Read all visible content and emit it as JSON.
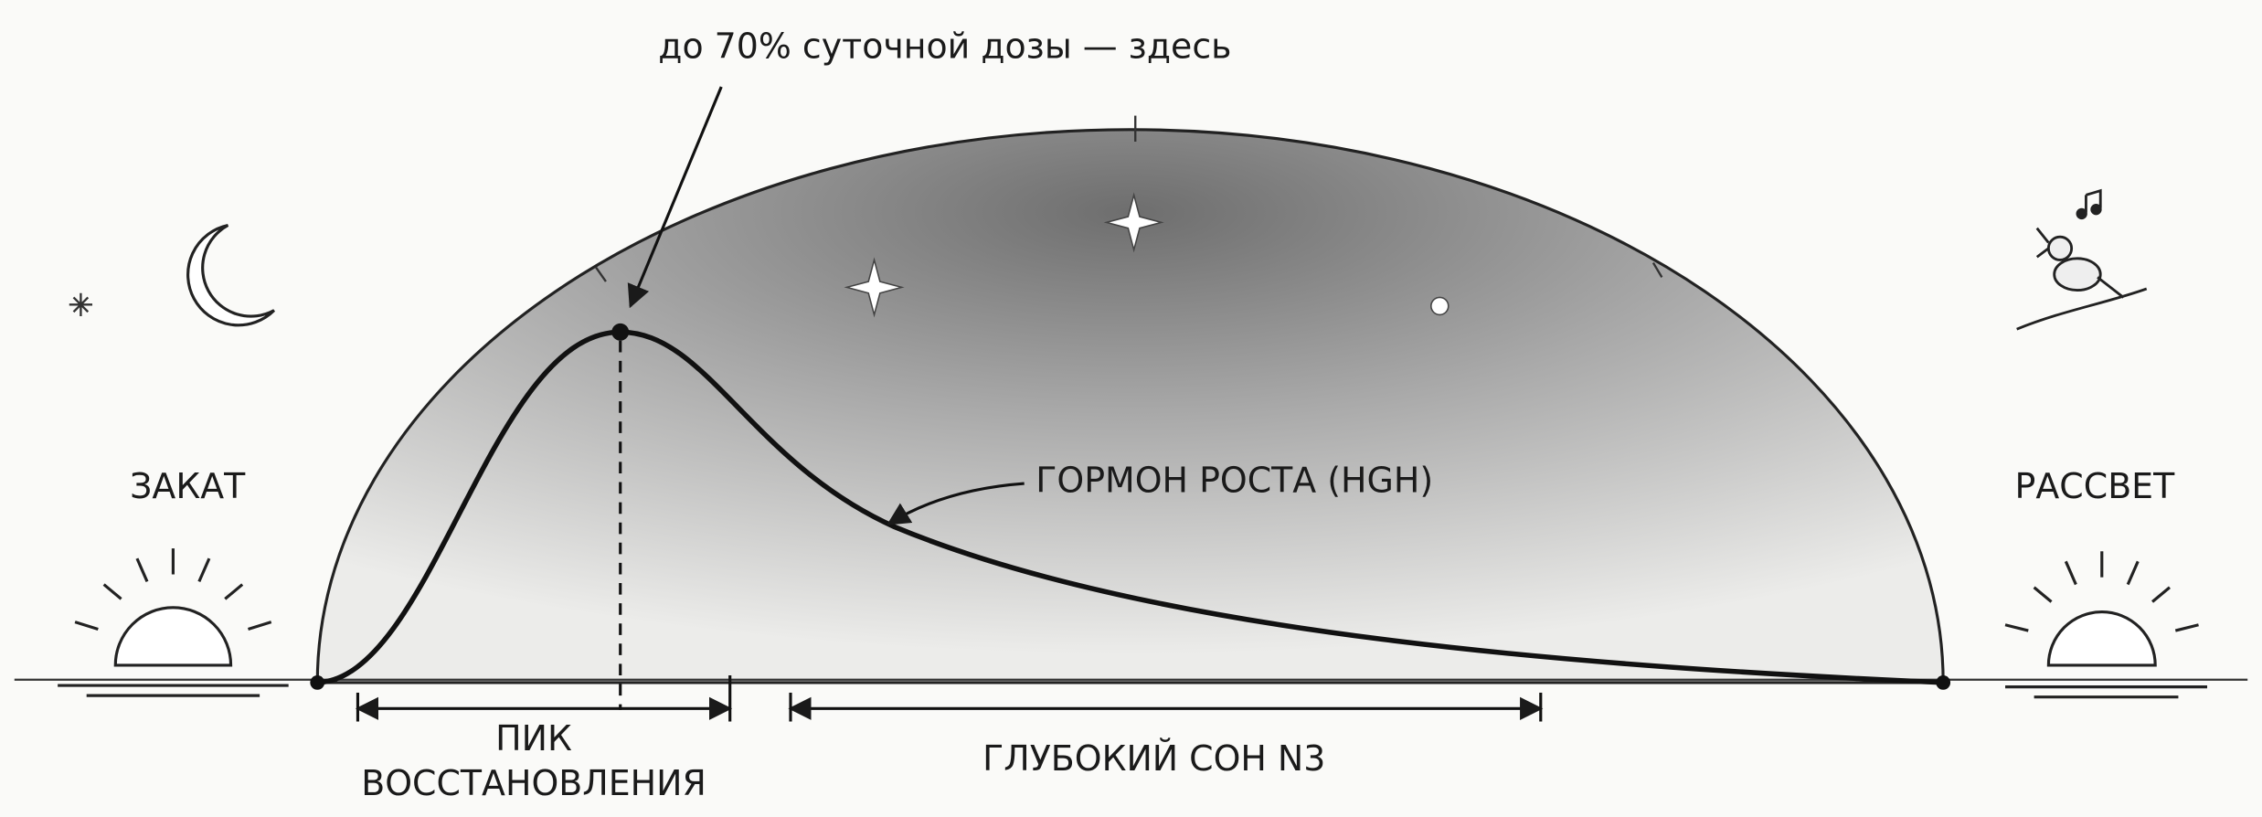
{
  "annotation": "до 70% суточной дозы — здесь",
  "sunset": "ЗАКАТ",
  "sunrise": "РАССВЕТ",
  "curve_label": "ГОРМОН РОСТА (HGH)",
  "peak_label": {
    "line1": "ПИК",
    "line2": "ВОССТАНОВЛЕНИЯ"
  },
  "deep_sleep_label": "ГЛУБОКИЙ СОН N3"
}
